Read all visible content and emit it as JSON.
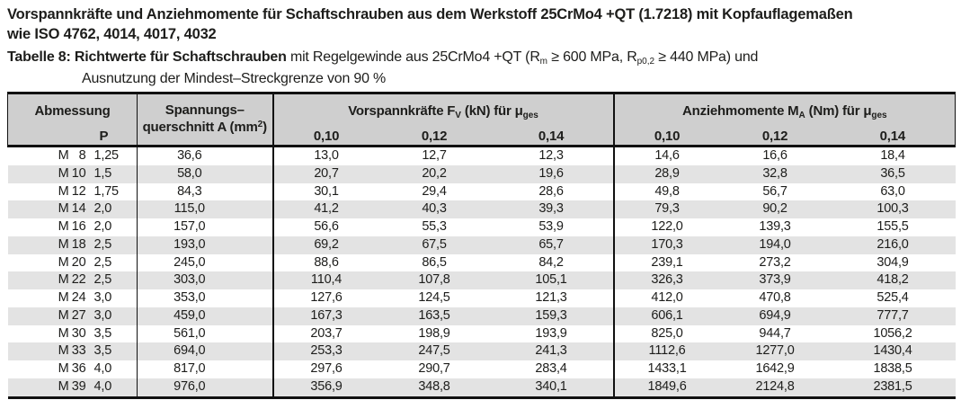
{
  "page": {
    "title_line1": "Vorspannkräfte und Anziehmomente für Schaftschrauben aus dem Werkstoff 25CrMo4 +QT (1.7218) mit Kopfauflagemaßen",
    "title_line2": "wie ISO 4762, 4014, 4017, 4032"
  },
  "caption": {
    "label_bold": "Tabelle 8: Richtwerte für Schaftschrauben",
    "part1": " mit Regelgewinde aus 25CrMo4 +QT (R",
    "sub1": "m",
    "part2": " ≥ 600 MPa, R",
    "sub2": "p0,2",
    "part3": " ≥ 440 MPa) und",
    "line2": "Ausnutzung der Mindest–Streckgrenze von 90 %"
  },
  "table": {
    "headers": {
      "abmessung": "Abmessung",
      "p": "P",
      "spannung_line1": "Spannungs–",
      "spannung_line2_pre": "querschnitt A  (mm",
      "spannung_sup": "2",
      "spannung_line2_post": ")",
      "fv_pre": "Vorspannkräfte F",
      "fv_sub": "V",
      "fv_mid": " (kN) für μ",
      "fv_sub2": "ges",
      "ma_pre": "Anziehmomente M",
      "ma_sub": "A",
      "ma_mid": "  (Nm) für μ",
      "ma_sub2": "ges",
      "mu_values": [
        "0,10",
        "0,12",
        "0,14"
      ]
    },
    "rows": [
      {
        "m": "M",
        "size": "8",
        "p": "1,25",
        "a": "36,6",
        "fv": [
          "13,0",
          "12,7",
          "12,3"
        ],
        "ma": [
          "14,6",
          "16,6",
          "18,4"
        ]
      },
      {
        "m": "M",
        "size": "10",
        "p": "1,5",
        "a": "58,0",
        "fv": [
          "20,7",
          "20,2",
          "19,6"
        ],
        "ma": [
          "28,9",
          "32,8",
          "36,5"
        ]
      },
      {
        "m": "M",
        "size": "12",
        "p": "1,75",
        "a": "84,3",
        "fv": [
          "30,1",
          "29,4",
          "28,6"
        ],
        "ma": [
          "49,8",
          "56,7",
          "63,0"
        ]
      },
      {
        "m": "M",
        "size": "14",
        "p": "2,0",
        "a": "115,0",
        "fv": [
          "41,2",
          "40,3",
          "39,3"
        ],
        "ma": [
          "79,3",
          "90,2",
          "100,3"
        ]
      },
      {
        "m": "M",
        "size": "16",
        "p": "2,0",
        "a": "157,0",
        "fv": [
          "56,6",
          "55,3",
          "53,9"
        ],
        "ma": [
          "122,0",
          "139,3",
          "155,5"
        ]
      },
      {
        "m": "M",
        "size": "18",
        "p": "2,5",
        "a": "193,0",
        "fv": [
          "69,2",
          "67,5",
          "65,7"
        ],
        "ma": [
          "170,3",
          "194,0",
          "216,0"
        ]
      },
      {
        "m": "M",
        "size": "20",
        "p": "2,5",
        "a": "245,0",
        "fv": [
          "88,6",
          "86,5",
          "84,2"
        ],
        "ma": [
          "239,1",
          "273,2",
          "304,9"
        ]
      },
      {
        "m": "M",
        "size": "22",
        "p": "2,5",
        "a": "303,0",
        "fv": [
          "110,4",
          "107,8",
          "105,1"
        ],
        "ma": [
          "326,3",
          "373,9",
          "418,2"
        ]
      },
      {
        "m": "M",
        "size": "24",
        "p": "3,0",
        "a": "353,0",
        "fv": [
          "127,6",
          "124,5",
          "121,3"
        ],
        "ma": [
          "412,0",
          "470,8",
          "525,4"
        ]
      },
      {
        "m": "M",
        "size": "27",
        "p": "3,0",
        "a": "459,0",
        "fv": [
          "167,3",
          "163,5",
          "159,3"
        ],
        "ma": [
          "606,1",
          "694,9",
          "777,7"
        ]
      },
      {
        "m": "M",
        "size": "30",
        "p": "3,5",
        "a": "561,0",
        "fv": [
          "203,7",
          "198,9",
          "193,9"
        ],
        "ma": [
          "825,0",
          "944,7",
          "1056,2"
        ]
      },
      {
        "m": "M",
        "size": "33",
        "p": "3,5",
        "a": "694,0",
        "fv": [
          "253,3",
          "247,5",
          "241,3"
        ],
        "ma": [
          "1112,6",
          "1277,0",
          "1430,4"
        ]
      },
      {
        "m": "M",
        "size": "36",
        "p": "4,0",
        "a": "817,0",
        "fv": [
          "297,6",
          "290,7",
          "283,4"
        ],
        "ma": [
          "1433,1",
          "1642,9",
          "1838,5"
        ]
      },
      {
        "m": "M",
        "size": "39",
        "p": "4,0",
        "a": "976,0",
        "fv": [
          "356,9",
          "348,8",
          "340,1"
        ],
        "ma": [
          "1849,6",
          "2124,8",
          "2381,5"
        ]
      }
    ]
  },
  "colors": {
    "header_bg": "#cfcfcf",
    "stripe_bg": "#e3e3e3",
    "border": "#111111",
    "text": "#1d1d1b",
    "page_bg": "#ffffff"
  }
}
